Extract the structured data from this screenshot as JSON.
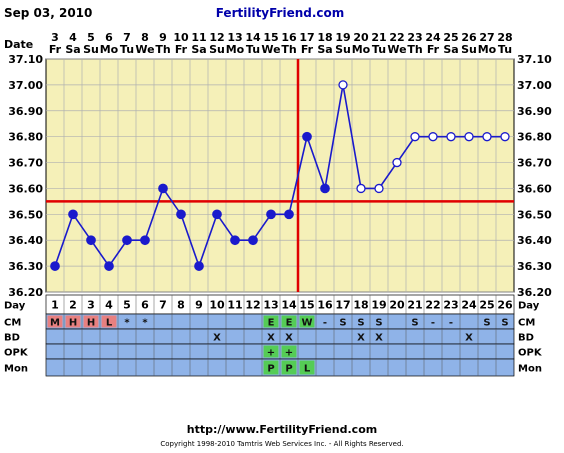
{
  "header": {
    "date": "Sep 03, 2010",
    "site": "FertilityFriend.com"
  },
  "footer": {
    "url": "http://www.FertilityFriend.com",
    "copyright": "Copyright 1998-2010 Tamtris Web Services Inc. - All Rights Reserved."
  },
  "labels": {
    "date_row": "Date",
    "day_row": "Day",
    "cm_row": "CM",
    "bd_row": "BD",
    "opk_row": "OPK",
    "mon_row": "Mon"
  },
  "colors": {
    "plot_bg": "#f5f0b8",
    "line": "#1a1acc",
    "coverline": "#e00000",
    "grid": "#b0b0b0",
    "row_bg": "#8fb3e8",
    "menses": "#e88080",
    "green": "#55cc55",
    "day_bg": "#ffffff"
  },
  "chart_data": {
    "type": "line",
    "dates": [
      "3",
      "4",
      "5",
      "6",
      "7",
      "8",
      "9",
      "10",
      "11",
      "12",
      "13",
      "14",
      "15",
      "16",
      "17",
      "18",
      "19",
      "20",
      "21",
      "22",
      "23",
      "24",
      "25",
      "26",
      "27",
      "28"
    ],
    "weekdays": [
      "Fr",
      "Sa",
      "Su",
      "Mo",
      "Tu",
      "We",
      "Th",
      "Fr",
      "Sa",
      "Su",
      "Mo",
      "Tu",
      "We",
      "Th",
      "Fr",
      "Sa",
      "Su",
      "Mo",
      "Tu",
      "We",
      "Th",
      "Fr",
      "Sa",
      "Su",
      "Mo",
      "Tu"
    ],
    "days": [
      "1",
      "2",
      "3",
      "4",
      "5",
      "6",
      "7",
      "8",
      "9",
      "10",
      "11",
      "12",
      "13",
      "14",
      "15",
      "16",
      "17",
      "18",
      "19",
      "20",
      "21",
      "22",
      "23",
      "24",
      "25",
      "26"
    ],
    "temps": [
      36.3,
      36.5,
      36.4,
      36.3,
      36.4,
      36.4,
      36.6,
      36.5,
      36.3,
      36.5,
      36.4,
      36.4,
      36.5,
      36.5,
      36.8,
      36.6,
      37.0,
      36.6,
      36.6,
      36.7,
      36.8,
      36.8,
      36.8,
      36.8,
      36.8,
      36.8
    ],
    "hollow": [
      false,
      false,
      false,
      false,
      false,
      false,
      false,
      false,
      false,
      false,
      false,
      false,
      false,
      false,
      false,
      false,
      true,
      true,
      true,
      true,
      true,
      true,
      true,
      true,
      true,
      true
    ],
    "ylim": [
      36.2,
      37.1
    ],
    "yticks": [
      "36.20",
      "36.30",
      "36.40",
      "36.50",
      "36.60",
      "36.70",
      "36.80",
      "36.90",
      "37.00",
      "37.10"
    ],
    "coverline_temp": 36.55,
    "ovulation_day": 14,
    "cm": [
      "M",
      "H",
      "H",
      "L",
      "*",
      "*",
      "",
      "",
      "",
      "",
      "",
      "",
      "E",
      "E",
      "W",
      "-",
      "S",
      "S",
      "S",
      "",
      "S",
      "-",
      "-",
      "",
      "S",
      "S"
    ],
    "cm_style": [
      "menses",
      "menses",
      "menses",
      "menses",
      "",
      "",
      "",
      "",
      "",
      "",
      "",
      "",
      "green",
      "green",
      "green",
      "",
      "",
      "",
      "",
      "",
      "",
      "",
      "",
      "",
      "",
      ""
    ],
    "bd": [
      "",
      "",
      "",
      "",
      "",
      "",
      "",
      "",
      "",
      "X",
      "",
      "",
      "X",
      "X",
      "",
      "",
      "",
      "X",
      "X",
      "",
      "",
      "",
      "",
      "X",
      "",
      ""
    ],
    "opk": [
      "",
      "",
      "",
      "",
      "",
      "",
      "",
      "",
      "",
      "",
      "",
      "",
      "+",
      "+",
      "",
      "",
      "",
      "",
      "",
      "",
      "",
      "",
      "",
      "",
      "",
      ""
    ],
    "mon": [
      "",
      "",
      "",
      "",
      "",
      "",
      "",
      "",
      "",
      "",
      "",
      "",
      "P",
      "P",
      "L",
      "",
      "",
      "",
      "",
      "",
      "",
      "",
      "",
      "",
      "",
      ""
    ]
  }
}
